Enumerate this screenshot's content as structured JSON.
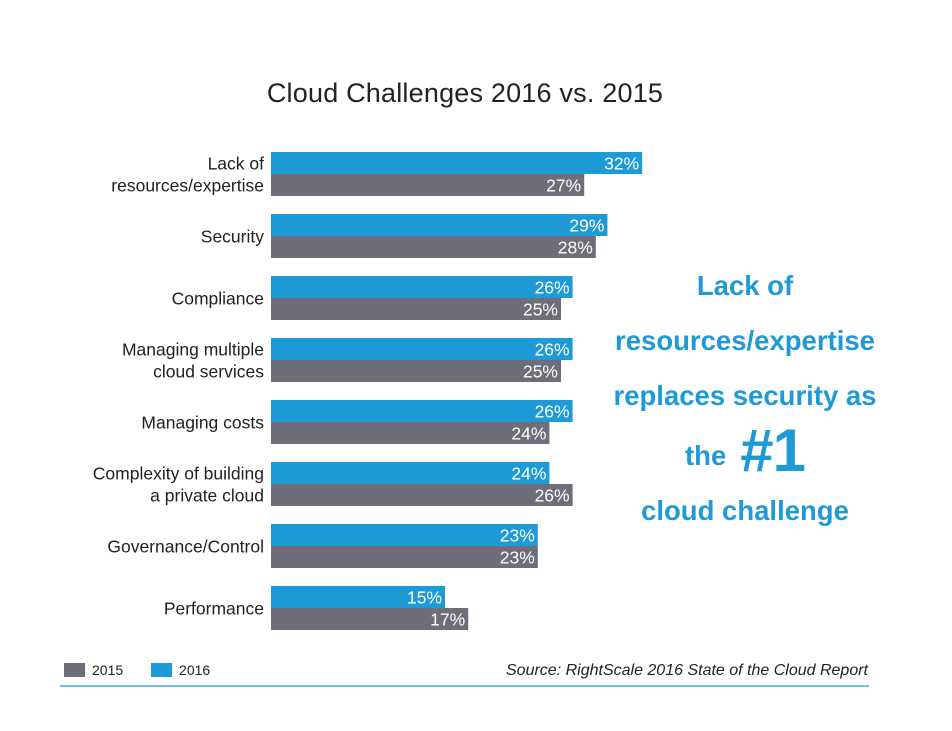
{
  "colors": {
    "2016": "#1e9bd7",
    "2015": "#6e6e7b",
    "callout": "#1e9bd7",
    "rule": "#6cc4ec"
  },
  "chart_data": {
    "type": "bar",
    "orientation": "horizontal",
    "title": "Cloud Challenges 2016 vs. 2015",
    "categories": [
      [
        "Lack of",
        "resources/expertise"
      ],
      [
        "Security"
      ],
      [
        "Compliance"
      ],
      [
        "Managing multiple",
        "cloud services"
      ],
      [
        "Managing costs"
      ],
      [
        "Complexity of building",
        "a private cloud"
      ],
      [
        "Governance/Control"
      ],
      [
        "Performance"
      ]
    ],
    "series": [
      {
        "name": "2016",
        "values": [
          32,
          29,
          26,
          26,
          26,
          24,
          23,
          15
        ]
      },
      {
        "name": "2015",
        "values": [
          27,
          28,
          25,
          25,
          24,
          26,
          23,
          17
        ]
      }
    ],
    "value_suffix": "%",
    "xlim": [
      0,
      32
    ],
    "grid": false,
    "legend_position": "bottom-left"
  },
  "callout": {
    "line1": "Lack of",
    "line2": "resources/expertise",
    "line3": "replaces security as",
    "line4_prefix": "the",
    "line4_big": "#1",
    "line5": "cloud challenge"
  },
  "legend": [
    {
      "label": "2015",
      "series": "2015"
    },
    {
      "label": "2016",
      "series": "2016"
    }
  ],
  "source": "Source: RightScale 2016 State of the Cloud Report"
}
